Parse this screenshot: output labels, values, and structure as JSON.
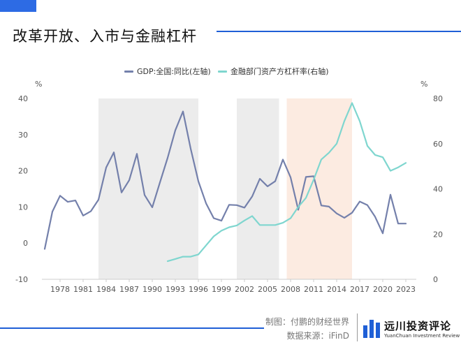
{
  "header": {
    "title": "改革开放、入市与金融杠杆"
  },
  "legend": [
    {
      "label": "GDP:全国:同比(左轴)",
      "color": "#7480ab"
    },
    {
      "label": "金融部门资产方杠杆率(右轴)",
      "color": "#7fd6cf"
    }
  ],
  "footer": {
    "source_line1": "制图：付鹏的财经世界",
    "source_line2": "数据来源：iFinD",
    "logo_name": "远川投资评论",
    "logo_sub": "YuanChuan Investment Review"
  },
  "chart_data": {
    "type": "line",
    "left_axis": {
      "unit": "%",
      "ylim": [
        -10,
        40
      ],
      "ticks": [
        -10,
        0,
        10,
        20,
        30,
        40
      ]
    },
    "right_axis": {
      "unit": "%",
      "ylim": [
        0,
        80
      ],
      "ticks": [
        0,
        20,
        40,
        60,
        80
      ]
    },
    "xlim": [
      1976,
      2024
    ],
    "xticks": [
      1978,
      1981,
      1984,
      1987,
      1990,
      1993,
      1996,
      1999,
      2002,
      2005,
      2008,
      2011,
      2014,
      2017,
      2020,
      2023
    ],
    "shaded_periods": [
      {
        "start": 1983,
        "end": 1996,
        "color": "#ececec"
      },
      {
        "start": 2001,
        "end": 2006.5,
        "color": "#ececec"
      },
      {
        "start": 2007.5,
        "end": 2016,
        "color": "#fcebe1"
      }
    ],
    "grid": false,
    "series": [
      {
        "name": "GDP:全国:同比(左轴)",
        "axis": "left",
        "color": "#7480ab",
        "x": [
          1976,
          1977,
          1978,
          1979,
          1980,
          1981,
          1982,
          1983,
          1984,
          1985,
          1986,
          1987,
          1988,
          1989,
          1990,
          1991,
          1992,
          1993,
          1994,
          1995,
          1996,
          1997,
          1998,
          1999,
          2000,
          2001,
          2002,
          2003,
          2004,
          2005,
          2006,
          2007,
          2008,
          2009,
          2010,
          2011,
          2012,
          2013,
          2014,
          2015,
          2016,
          2017,
          2018,
          2019,
          2020,
          2021,
          2022,
          2023
        ],
        "values": [
          -1.6,
          8.7,
          13.1,
          11.4,
          11.8,
          7.6,
          8.8,
          12.0,
          20.9,
          25.1,
          14.0,
          17.4,
          24.7,
          13.3,
          9.9,
          16.8,
          23.6,
          31.2,
          36.4,
          26.1,
          17.1,
          11.0,
          6.9,
          6.2,
          10.6,
          10.5,
          9.8,
          12.9,
          17.8,
          15.7,
          17.1,
          23.1,
          18.2,
          9.2,
          18.3,
          18.5,
          10.4,
          10.1,
          8.2,
          7.0,
          8.4,
          11.5,
          10.5,
          7.3,
          2.7,
          13.4,
          5.4,
          5.4
        ]
      },
      {
        "name": "金融部门资产方杠杆率(右轴)",
        "axis": "right",
        "color": "#7fd6cf",
        "x": [
          1992,
          1993,
          1994,
          1995,
          1996,
          1997,
          1998,
          1999,
          2000,
          2001,
          2002,
          2003,
          2004,
          2005,
          2006,
          2007,
          2008,
          2009,
          2010,
          2011,
          2012,
          2013,
          2014,
          2015,
          2016,
          2017,
          2018,
          2019,
          2020,
          2021,
          2022,
          2023
        ],
        "values": [
          8,
          9,
          10,
          10,
          11,
          15,
          19,
          21.5,
          23,
          23.8,
          26,
          28,
          24,
          24,
          24,
          25,
          27,
          32,
          36,
          44,
          53,
          56,
          60,
          70,
          78,
          70,
          59,
          55,
          54,
          48,
          49.5,
          51.5
        ]
      }
    ]
  }
}
